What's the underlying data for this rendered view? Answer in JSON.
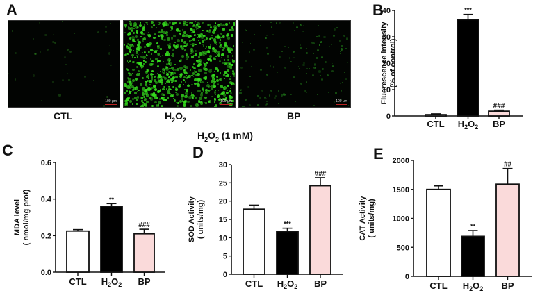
{
  "figure": {
    "panel_A": {
      "letter": "A",
      "images": [
        {
          "label": "CTL",
          "scale_bar": "100 μm",
          "density": "low"
        },
        {
          "label": "H2O2",
          "scale_bar": "100 μm",
          "density": "high"
        },
        {
          "label": "BP",
          "scale_bar": "100 μm",
          "density": "medium-low"
        }
      ],
      "labels": {
        "ctl": "CTL",
        "h2o2_main": "H",
        "h2o2_sub1": "2",
        "h2o2_o": "O",
        "h2o2_sub2": "2",
        "bp": "BP"
      },
      "treatment_prefix": "H",
      "treatment_sub1": "2",
      "treatment_o": "O",
      "treatment_sub2": "2",
      "treatment_suffix": " (1 mM)"
    },
    "letters": {
      "B": "B",
      "C": "C",
      "D": "D",
      "E": "E"
    }
  },
  "chart_data": [
    {
      "panel": "B",
      "type": "bar",
      "categories": [
        "CTL",
        "H2O2",
        "BP"
      ],
      "values": [
        0.5,
        36.5,
        1.8
      ],
      "errors": [
        0.3,
        2.0,
        0.4
      ],
      "significance": [
        "",
        "***",
        "###"
      ],
      "bar_colors": [
        "#ffffff",
        "#000000",
        "#fadada"
      ],
      "title": "",
      "xlabel": "",
      "ylabel": "Fluorescence intensity (% of control)",
      "ylabel_line1": "Fluorescence intensity",
      "ylabel_line2": "(% of control)",
      "ylim": [
        0,
        40
      ],
      "yticks": [
        0,
        10,
        20,
        30,
        40
      ],
      "grid": false
    },
    {
      "panel": "C",
      "type": "bar",
      "categories": [
        "CTL",
        "H2O2",
        "BP"
      ],
      "values": [
        0.225,
        0.36,
        0.21
      ],
      "errors": [
        0.008,
        0.015,
        0.025
      ],
      "significance": [
        "",
        "**",
        "###"
      ],
      "bar_colors": [
        "#ffffff",
        "#000000",
        "#fadada"
      ],
      "title": "",
      "xlabel": "",
      "ylabel": "MDA level (nmol/mg prot)",
      "ylabel_line1": "MDA level",
      "ylabel_line2": "( nmol/mg prot)",
      "ylim": [
        0,
        0.6
      ],
      "yticks": [
        0.0,
        0.2,
        0.4,
        0.6
      ],
      "ytick_labels": [
        "0.0",
        "0.2",
        "0.4",
        "0.6"
      ],
      "grid": false
    },
    {
      "panel": "D",
      "type": "bar",
      "categories": [
        "CTL",
        "H2O2",
        "BP"
      ],
      "values": [
        17.8,
        11.7,
        24.2
      ],
      "errors": [
        1.1,
        0.9,
        2.2
      ],
      "significance": [
        "",
        "***",
        "###"
      ],
      "bar_colors": [
        "#ffffff",
        "#000000",
        "#fadada"
      ],
      "title": "",
      "xlabel": "",
      "ylabel": "SOD Activity (units/mg)",
      "ylabel_line1": "SOD Activity",
      "ylabel_line2": "( units/mg)",
      "ylim": [
        0,
        30
      ],
      "yticks": [
        0,
        5,
        10,
        15,
        20,
        25,
        30
      ],
      "grid": false
    },
    {
      "panel": "E",
      "type": "bar",
      "categories": [
        "CTL",
        "H2O2",
        "BP"
      ],
      "values": [
        1500,
        690,
        1590
      ],
      "errors": [
        60,
        100,
        270
      ],
      "significance": [
        "",
        "**",
        "##"
      ],
      "bar_colors": [
        "#ffffff",
        "#000000",
        "#fadada"
      ],
      "title": "",
      "xlabel": "",
      "ylabel": "CAT Activity (units/mg)",
      "ylabel_line1": "CAT Activity",
      "ylabel_line2": "( units/mg)",
      "ylim": [
        0,
        2000
      ],
      "yticks": [
        0,
        500,
        1000,
        1500,
        2000
      ],
      "grid": false
    }
  ]
}
